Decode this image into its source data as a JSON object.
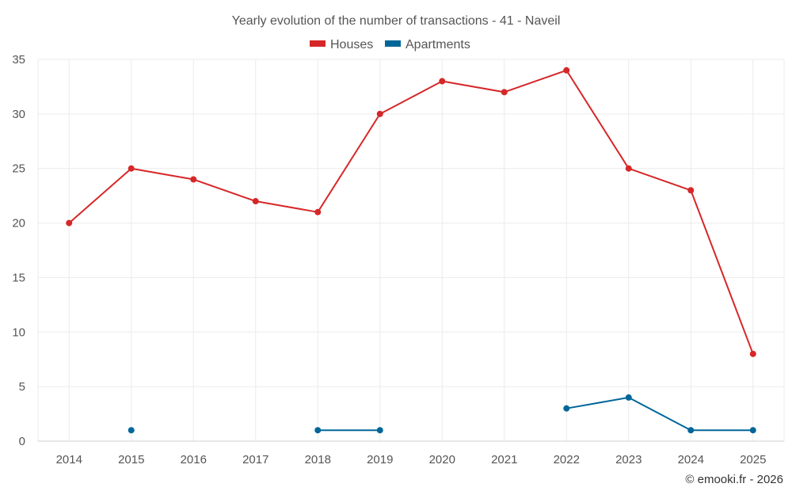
{
  "chart_data": {
    "type": "line",
    "title": "Yearly evolution of the number of transactions - 41 - Naveil",
    "categories": [
      "2014",
      "2015",
      "2016",
      "2017",
      "2018",
      "2019",
      "2020",
      "2021",
      "2022",
      "2023",
      "2024",
      "2025"
    ],
    "series": [
      {
        "name": "Houses",
        "color": "#d62728",
        "values": [
          20,
          25,
          24,
          22,
          21,
          30,
          33,
          32,
          34,
          25,
          23,
          8
        ]
      },
      {
        "name": "Apartments",
        "color": "#006699",
        "values": [
          null,
          1,
          null,
          null,
          1,
          1,
          null,
          null,
          3,
          4,
          1,
          1
        ]
      }
    ],
    "ylim": [
      0,
      35
    ],
    "yticks": [
      0,
      5,
      10,
      15,
      20,
      25,
      30,
      35
    ],
    "xlabel": "",
    "ylabel": "",
    "grid": true,
    "legend": "top-center"
  },
  "credit": "© emooki.fr - 2026"
}
